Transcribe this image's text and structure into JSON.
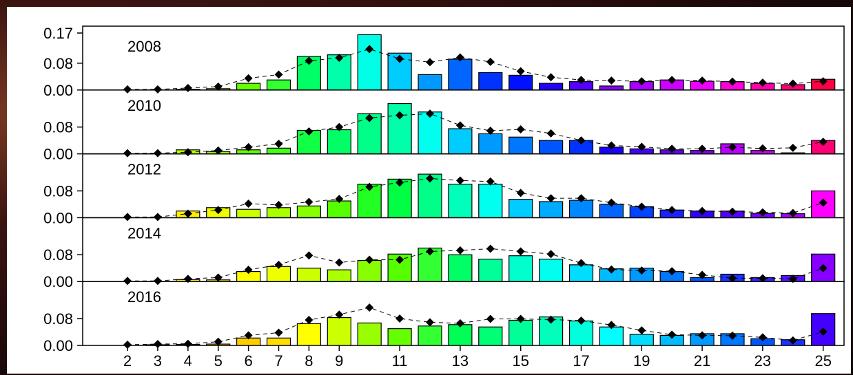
{
  "chart_data": {
    "type": "bar",
    "categories": [
      2,
      3,
      4,
      5,
      6,
      7,
      8,
      9,
      10,
      11,
      12,
      13,
      14,
      15,
      16,
      17,
      18,
      19,
      20,
      21,
      22,
      23,
      24,
      25
    ],
    "x_tick_labels": [
      "2",
      "3",
      "4",
      "5",
      "6",
      "7",
      "8",
      "9",
      "11",
      "13",
      "15",
      "17",
      "19",
      "21",
      "23",
      "25"
    ],
    "y_tick_labels": [
      "0.17",
      "0.08",
      "0.00"
    ],
    "ylim": [
      0,
      0.17
    ],
    "grid": false,
    "legend": "none",
    "overlay": "points joined by dashed line",
    "panels": [
      {
        "title": "2008",
        "bars": [
          0.0,
          0.0,
          0.002,
          0.004,
          0.02,
          0.03,
          0.1,
          0.105,
          0.165,
          0.11,
          0.046,
          0.092,
          0.052,
          0.044,
          0.02,
          0.025,
          0.012,
          0.025,
          0.03,
          0.026,
          0.025,
          0.02,
          0.016,
          0.032
        ],
        "points": [
          0.002,
          0.002,
          0.006,
          0.01,
          0.035,
          0.046,
          0.087,
          0.096,
          0.122,
          0.093,
          0.083,
          0.097,
          0.084,
          0.056,
          0.038,
          0.03,
          0.028,
          0.026,
          0.03,
          0.028,
          0.025,
          0.022,
          0.019,
          0.026
        ]
      },
      {
        "title": "2010",
        "bars": [
          0.0,
          0.0,
          0.012,
          0.007,
          0.012,
          0.017,
          0.07,
          0.072,
          0.12,
          0.15,
          0.125,
          0.075,
          0.06,
          0.05,
          0.04,
          0.04,
          0.02,
          0.015,
          0.012,
          0.01,
          0.03,
          0.01,
          0.003,
          0.04
        ],
        "points": [
          0.002,
          0.002,
          0.005,
          0.01,
          0.02,
          0.03,
          0.067,
          0.08,
          0.107,
          0.115,
          0.12,
          0.085,
          0.069,
          0.073,
          0.061,
          0.04,
          0.025,
          0.021,
          0.015,
          0.015,
          0.02,
          0.016,
          0.018,
          0.036
        ]
      },
      {
        "title": "2012",
        "bars": [
          0.0,
          0.0,
          0.02,
          0.03,
          0.025,
          0.03,
          0.035,
          0.05,
          0.1,
          0.115,
          0.13,
          0.1,
          0.1,
          0.055,
          0.048,
          0.052,
          0.04,
          0.033,
          0.023,
          0.02,
          0.02,
          0.013,
          0.012,
          0.08
        ],
        "points": [
          0.002,
          0.002,
          0.012,
          0.023,
          0.042,
          0.038,
          0.047,
          0.056,
          0.092,
          0.105,
          0.117,
          0.111,
          0.108,
          0.074,
          0.058,
          0.058,
          0.045,
          0.033,
          0.023,
          0.02,
          0.018,
          0.016,
          0.014,
          0.045
        ]
      },
      {
        "title": "2014",
        "bars": [
          0.0,
          0.0,
          0.006,
          0.005,
          0.03,
          0.045,
          0.04,
          0.035,
          0.063,
          0.082,
          0.1,
          0.08,
          0.067,
          0.077,
          0.067,
          0.05,
          0.038,
          0.04,
          0.03,
          0.012,
          0.022,
          0.012,
          0.018,
          0.082
        ],
        "points": [
          0.002,
          0.002,
          0.008,
          0.012,
          0.035,
          0.05,
          0.078,
          0.057,
          0.065,
          0.065,
          0.09,
          0.093,
          0.098,
          0.09,
          0.082,
          0.055,
          0.036,
          0.033,
          0.031,
          0.02,
          0.01,
          0.01,
          0.008,
          0.04
        ]
      },
      {
        "title": "2016",
        "bars": [
          0.0,
          0.002,
          0.003,
          0.004,
          0.022,
          0.022,
          0.065,
          0.083,
          0.067,
          0.05,
          0.058,
          0.062,
          0.055,
          0.075,
          0.085,
          0.073,
          0.055,
          0.033,
          0.03,
          0.035,
          0.035,
          0.02,
          0.017,
          0.095
        ],
        "points": [
          0.002,
          0.004,
          0.005,
          0.011,
          0.03,
          0.038,
          0.076,
          0.092,
          0.113,
          0.08,
          0.069,
          0.066,
          0.079,
          0.079,
          0.077,
          0.074,
          0.061,
          0.045,
          0.032,
          0.03,
          0.029,
          0.024,
          0.015,
          0.041
        ]
      }
    ],
    "bar_colors": {
      "2008": [
        "#ff9900",
        "#ffcc00",
        "#ffff00",
        "#ccff00",
        "#66ff00",
        "#33ff33",
        "#00ff66",
        "#00ffaa",
        "#00ffe6",
        "#00ccff",
        "#0099ff",
        "#0066ff",
        "#0033ff",
        "#0011ff",
        "#2200ff",
        "#5500ff",
        "#8800ff",
        "#aa00ff",
        "#cc00ff",
        "#ee00ff",
        "#ff00dd",
        "#ff00aa",
        "#ff0077",
        "#ff0044"
      ],
      "2010": [
        "#ffaa00",
        "#ffdd00",
        "#bbff00",
        "#99ff00",
        "#66ff00",
        "#44ff11",
        "#11ff44",
        "#00ff66",
        "#00ff88",
        "#00ffaa",
        "#00ffee",
        "#00ccff",
        "#0099ff",
        "#0077ff",
        "#0055ff",
        "#0033ff",
        "#1a00ff",
        "#4400ff",
        "#6600ff",
        "#8800ff",
        "#bb00ff",
        "#cc00ff",
        "#ee00ff",
        "#ff0077"
      ],
      "2012": [
        "#ffbb00",
        "#ffdd00",
        "#ffee00",
        "#eeff00",
        "#ccff00",
        "#aaff00",
        "#88ff00",
        "#55ff00",
        "#22ff22",
        "#00ff44",
        "#00ff88",
        "#00ffbb",
        "#00ffee",
        "#00ccff",
        "#00aaff",
        "#0088ff",
        "#0066ff",
        "#0044ff",
        "#1a22ff",
        "#3300ff",
        "#5500ff",
        "#7700ff",
        "#aa00ff",
        "#ff00ff"
      ],
      "2014": [
        "#ffaa00",
        "#ffcc00",
        "#ffdd00",
        "#ffee00",
        "#ffff00",
        "#eeff00",
        "#ccff00",
        "#aaff00",
        "#88ff00",
        "#55ff00",
        "#33ff33",
        "#00ff66",
        "#00ff99",
        "#00ffcc",
        "#00ffee",
        "#00ddff",
        "#00bbff",
        "#0099ff",
        "#0077ff",
        "#0055ff",
        "#1a33ff",
        "#3322ff",
        "#5511ff",
        "#8800ff"
      ],
      "2016": [
        "#ff7700",
        "#ff9900",
        "#ffaa00",
        "#ffbb00",
        "#ffcc00",
        "#ffdd00",
        "#ffff00",
        "#ccff00",
        "#99ff00",
        "#66ff00",
        "#33ff33",
        "#00ff55",
        "#00ff77",
        "#00ff99",
        "#00ffbb",
        "#00ffdd",
        "#00ffff",
        "#00ddff",
        "#00bbff",
        "#0099ff",
        "#0077ff",
        "#0055ff",
        "#1a33ff",
        "#4400ff"
      ]
    }
  }
}
